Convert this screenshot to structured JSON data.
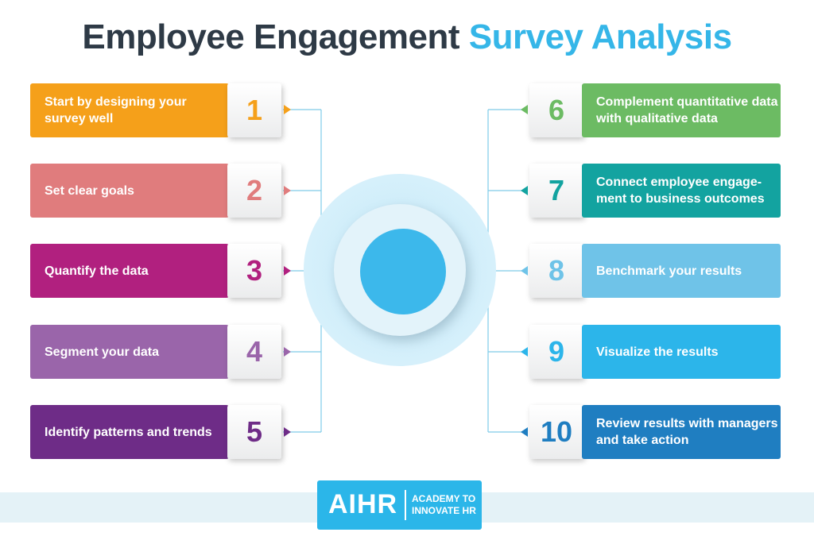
{
  "title": {
    "main": "Employee Engagement",
    "accent": "Survey Analysis"
  },
  "steps_left": [
    {
      "number": "1",
      "label": "Start by designing your survey well",
      "color": "#f5a01a"
    },
    {
      "number": "2",
      "label": "Set clear goals",
      "color": "#e07c7d"
    },
    {
      "number": "3",
      "label": "Quantify the data",
      "color": "#b1207f"
    },
    {
      "number": "4",
      "label": "Segment your data",
      "color": "#9a65aa"
    },
    {
      "number": "5",
      "label": "Identify patterns and trends",
      "color": "#6e2c87"
    }
  ],
  "steps_right": [
    {
      "number": "6",
      "label": "Complement quantitative data with qualitative data",
      "color": "#6cbb63"
    },
    {
      "number": "7",
      "label": "Connect employee engage-ment to business outcomes",
      "color": "#13a3a0"
    },
    {
      "number": "8",
      "label": "Benchmark your results",
      "color": "#6fc3e8"
    },
    {
      "number": "9",
      "label": "Visualize the results",
      "color": "#2cb5ea"
    },
    {
      "number": "10",
      "label": "Review results with managers and take action",
      "color": "#1f7ec1"
    }
  ],
  "colors": {
    "connector": "#7fcbe8",
    "hub": "#3cb8eb"
  },
  "logo": {
    "mark": "AIHR",
    "subtitle_line1": "ACADEMY TO",
    "subtitle_line2": "INNOVATE HR"
  }
}
